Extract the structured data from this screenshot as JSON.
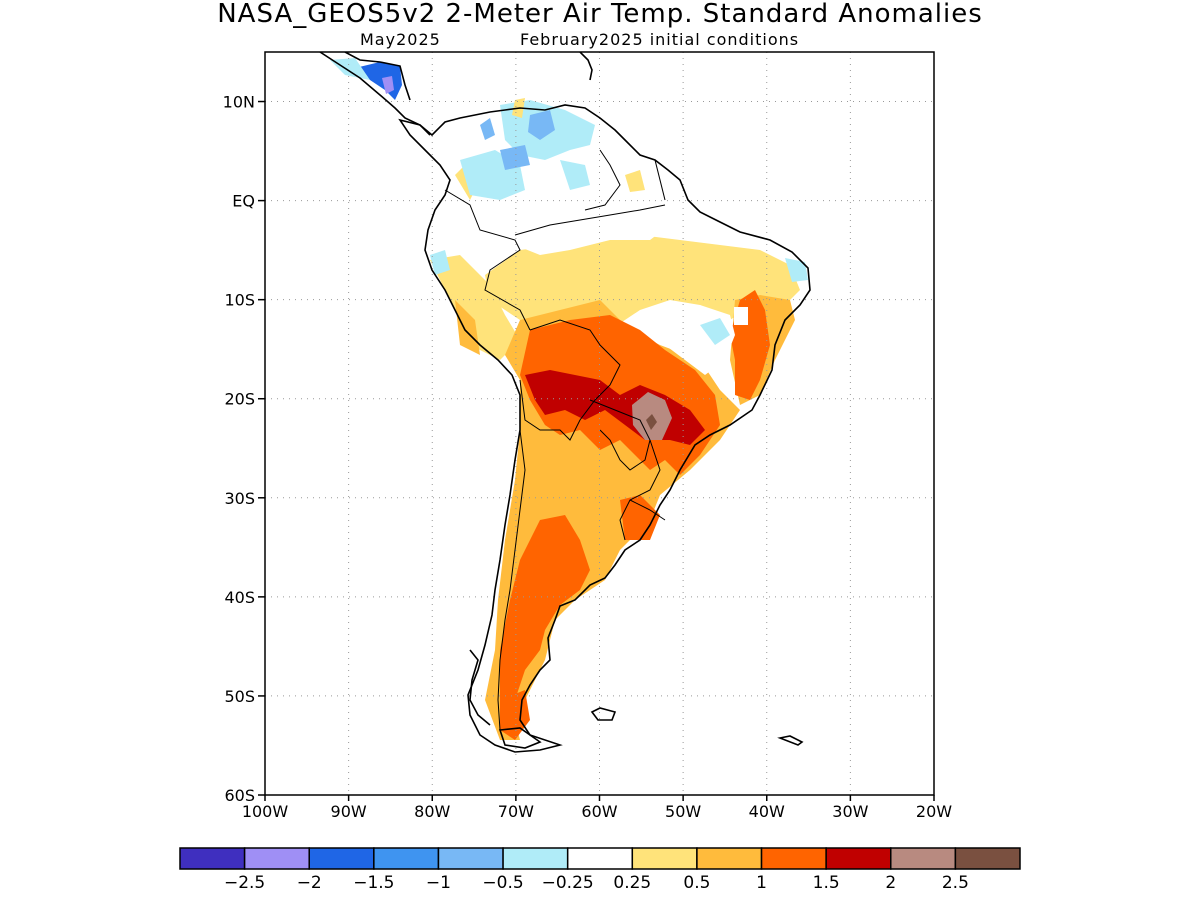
{
  "title": "NASA_GEOS5v2 2-Meter Air Temp. Standard Anomalies",
  "subtitle_left": "May2025",
  "subtitle_right": "February2025 initial conditions",
  "map": {
    "lon_range": [
      -100,
      -20
    ],
    "lat_range": [
      -60,
      15
    ],
    "lat_ticks": [
      {
        "value": 10,
        "label": "10N"
      },
      {
        "value": 0,
        "label": "EQ"
      },
      {
        "value": -10,
        "label": "10S"
      },
      {
        "value": -20,
        "label": "20S"
      },
      {
        "value": -30,
        "label": "30S"
      },
      {
        "value": -40,
        "label": "40S"
      },
      {
        "value": -50,
        "label": "50S"
      },
      {
        "value": -60,
        "label": "60S"
      }
    ],
    "lon_ticks": [
      {
        "value": -100,
        "label": "100W"
      },
      {
        "value": -90,
        "label": "90W"
      },
      {
        "value": -80,
        "label": "80W"
      },
      {
        "value": -70,
        "label": "70W"
      },
      {
        "value": -60,
        "label": "60W"
      },
      {
        "value": -50,
        "label": "50W"
      },
      {
        "value": -40,
        "label": "40W"
      },
      {
        "value": -30,
        "label": "30W"
      },
      {
        "value": -20,
        "label": "20W"
      }
    ],
    "grid": true
  },
  "colorbar": {
    "colors": [
      "#3f2fbf",
      "#9f8ff5",
      "#1f66e6",
      "#3f94f0",
      "#78b8f5",
      "#b0ecf8",
      "#ffffff",
      "#ffe37a",
      "#ffbb3c",
      "#ff6400",
      "#c00000",
      "#b88a80",
      "#7a5040"
    ],
    "labels": [
      "-2.5",
      "-2",
      "-1.5",
      "-1",
      "-0.5",
      "-0.25",
      "0.25",
      "0.5",
      "1",
      "1.5",
      "2",
      "2.5"
    ]
  },
  "colors": {
    "white_land": "#ffffff",
    "light_yellow": "#ffe37a",
    "orange": "#ffbb3c",
    "dark_orange": "#ff6400",
    "red": "#c00000",
    "brown": "#b88a80",
    "dark_brown": "#7a5040",
    "light_blue": "#b0ecf8",
    "medium_blue": "#78b8f5",
    "blue": "#3f94f0",
    "dark_blue": "#1f66e6",
    "purple": "#9f8ff5"
  }
}
